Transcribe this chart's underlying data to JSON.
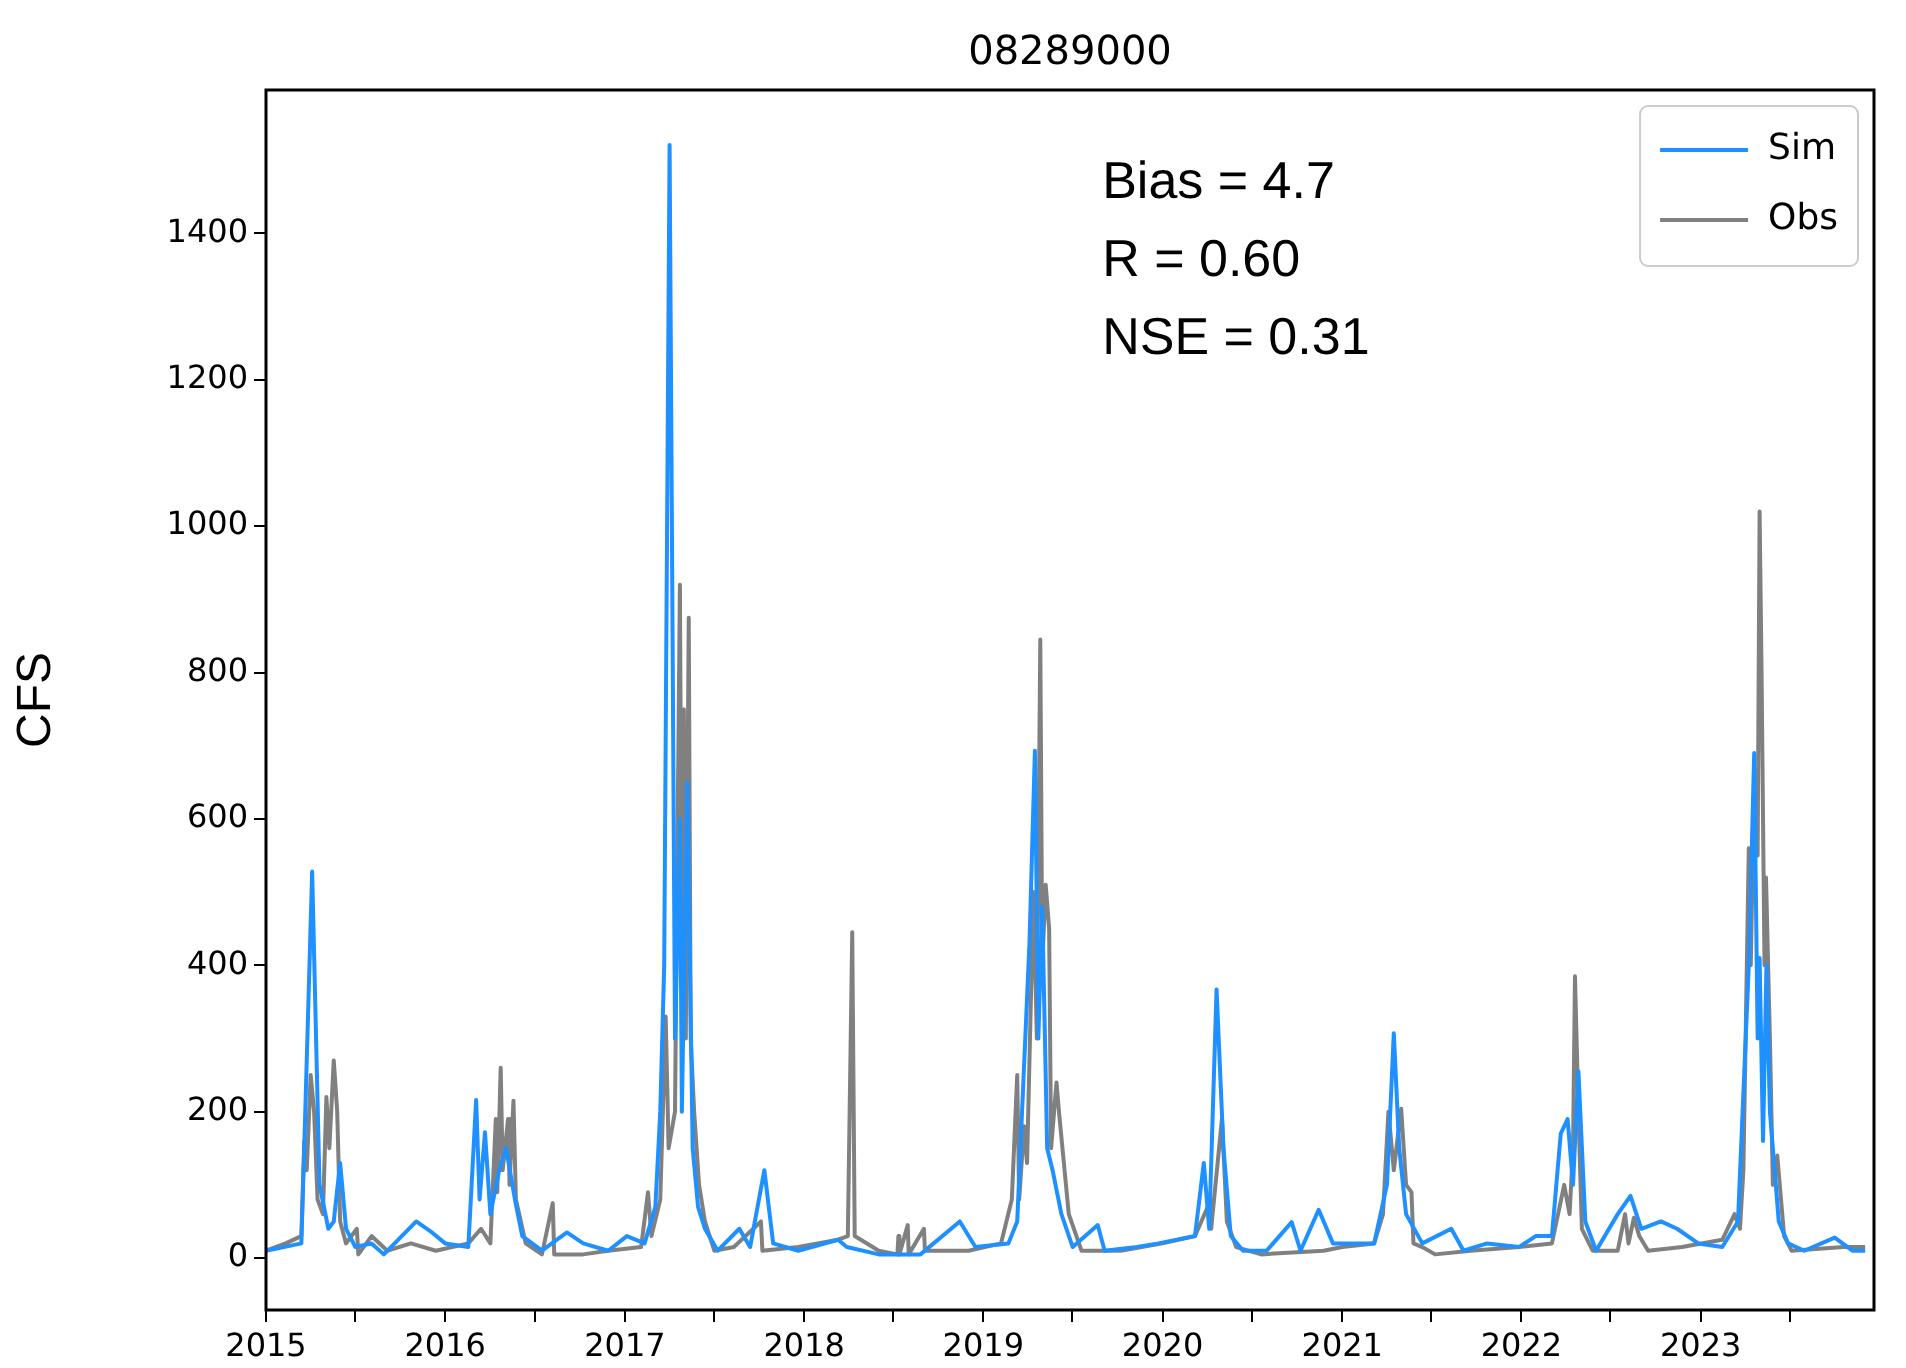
{
  "chart_data": {
    "type": "line",
    "title": "08289000",
    "ylabel": "CFS",
    "annotations": [
      "Bias = 4.7",
      "R = 0.60",
      "NSE = 0.31"
    ],
    "xlim": [
      "2015-01-01",
      "2023-12-20"
    ],
    "xticks": [
      {
        "value": "2015",
        "label": "2015"
      },
      {
        "value": "2015-07-01",
        "label": null
      },
      {
        "value": "2016",
        "label": "2016"
      },
      {
        "value": "2016-07-01",
        "label": null
      },
      {
        "value": "2017",
        "label": "2017"
      },
      {
        "value": "2017-07-01",
        "label": null
      },
      {
        "value": "2018",
        "label": "2018"
      },
      {
        "value": "2018-07-01",
        "label": null
      },
      {
        "value": "2019",
        "label": "2019"
      },
      {
        "value": "2019-07-01",
        "label": null
      },
      {
        "value": "2020",
        "label": "2020"
      },
      {
        "value": "2020-07-01",
        "label": null
      },
      {
        "value": "2021",
        "label": "2021"
      },
      {
        "value": "2021-07-01",
        "label": null
      },
      {
        "value": "2022",
        "label": "2022"
      },
      {
        "value": "2022-07-01",
        "label": null
      },
      {
        "value": "2023",
        "label": "2023"
      },
      {
        "value": "2023-07-01",
        "label": null
      }
    ],
    "ylim": [
      -71,
      1596
    ],
    "yticks": [
      0,
      200,
      400,
      600,
      800,
      1000,
      1200,
      1400
    ],
    "grid": false,
    "legend": "top right",
    "marker": "none",
    "line_style": "solid",
    "series": [
      {
        "name": "Sim",
        "color": "#1e90ff",
        "x": [
          "2015-01-01",
          "2015-03-14",
          "2015-03-22",
          "2015-04-05",
          "2015-04-20",
          "2015-05-08",
          "2015-05-19",
          "2015-06-01",
          "2015-06-13",
          "2015-07-02",
          "2015-08-04",
          "2015-08-29",
          "2015-11-03",
          "2015-12-05",
          "2016-01-01",
          "2016-02-17",
          "2016-03-04",
          "2016-03-11",
          "2016-03-22",
          "2016-04-02",
          "2016-04-20",
          "2016-05-04",
          "2016-05-22",
          "2016-06-06",
          "2016-07-16",
          "2016-09-05",
          "2016-10-08",
          "2016-11-28",
          "2017-01-05",
          "2017-02-10",
          "2017-03-04",
          "2017-03-14",
          "2017-03-22",
          "2017-04-02",
          "2017-04-13",
          "2017-04-23",
          "2017-04-27",
          "2017-05-08",
          "2017-05-19",
          "2017-05-30",
          "2017-06-13",
          "2017-07-09",
          "2017-08-22",
          "2017-09-13",
          "2017-10-12",
          "2017-10-30",
          "2017-12-20",
          "2018-03-11",
          "2018-03-29",
          "2018-06-02",
          "2018-08-26",
          "2018-11-14",
          "2018-12-16",
          "2019-02-21",
          "2019-03-11",
          "2019-04-05",
          "2019-04-16",
          "2019-04-23",
          "2019-05-01",
          "2019-05-11",
          "2019-05-22",
          "2019-06-09",
          "2019-07-02",
          "2019-08-22",
          "2019-09-05",
          "2019-11-10",
          "2019-12-24",
          "2020-03-07",
          "2020-03-25",
          "2020-04-05",
          "2020-04-20",
          "2020-05-04",
          "2020-05-19",
          "2020-06-13",
          "2020-07-31",
          "2020-09-20",
          "2020-10-08",
          "2020-11-14",
          "2020-12-13",
          "2021-03-07",
          "2021-04-02",
          "2021-04-16",
          "2021-04-27",
          "2021-05-11",
          "2021-06-13",
          "2021-08-11",
          "2021-09-05",
          "2021-10-23",
          "2021-12-27",
          "2022-01-30",
          "2022-03-04",
          "2022-03-22",
          "2022-04-05",
          "2022-04-16",
          "2022-04-27",
          "2022-05-11",
          "2022-06-02",
          "2022-07-16",
          "2022-08-11",
          "2022-09-02",
          "2022-10-12",
          "2022-11-14",
          "2022-12-27",
          "2023-02-14",
          "2023-03-18",
          "2023-04-09",
          "2023-04-20",
          "2023-04-27",
          "2023-05-01",
          "2023-05-08",
          "2023-05-15",
          "2023-05-22",
          "2023-06-09",
          "2023-06-28",
          "2023-07-31",
          "2023-10-01",
          "2023-11-06",
          "2023-12-02"
        ],
        "values": [
          10,
          20,
          200,
          528,
          100,
          40,
          50,
          130,
          40,
          15,
          20,
          5,
          50,
          35,
          20,
          15,
          216,
          80,
          172,
          60,
          120,
          150,
          80,
          30,
          10,
          35,
          20,
          10,
          30,
          20,
          70,
          200,
          400,
          1521,
          300,
          600,
          200,
          650,
          150,
          70,
          40,
          10,
          40,
          15,
          120,
          20,
          10,
          25,
          15,
          5,
          5,
          50,
          15,
          20,
          50,
          431,
          693,
          300,
          480,
          150,
          120,
          60,
          15,
          45,
          10,
          15,
          20,
          30,
          130,
          40,
          367,
          150,
          30,
          10,
          10,
          49,
          10,
          66,
          20,
          20,
          100,
          307,
          150,
          60,
          20,
          40,
          10,
          20,
          15,
          30,
          30,
          170,
          190,
          100,
          255,
          50,
          10,
          60,
          85,
          40,
          50,
          40,
          20,
          15,
          50,
          400,
          690,
          300,
          410,
          160,
          400,
          200,
          50,
          20,
          10,
          28,
          10,
          10
        ]
      },
      {
        "name": "Obs",
        "color": "#808080",
        "x": [
          "2015-01-01",
          "2015-02-10",
          "2015-03-14",
          "2015-03-20",
          "2015-03-25",
          "2015-04-02",
          "2015-04-09",
          "2015-04-16",
          "2015-04-27",
          "2015-05-04",
          "2015-05-10",
          "2015-05-19",
          "2015-05-26",
          "2015-06-01",
          "2015-06-13",
          "2015-07-05",
          "2015-07-08",
          "2015-08-04",
          "2015-09-05",
          "2015-10-23",
          "2015-12-13",
          "2016-02-17",
          "2016-03-14",
          "2016-04-02",
          "2016-04-13",
          "2016-04-16",
          "2016-04-23",
          "2016-04-27",
          "2016-05-08",
          "2016-05-11",
          "2016-05-19",
          "2016-05-24",
          "2016-06-13",
          "2016-07-16",
          "2016-08-07",
          "2016-08-10",
          "2016-10-08",
          "2016-11-28",
          "2017-02-03",
          "2017-02-17",
          "2017-02-24",
          "2017-03-14",
          "2017-03-25",
          "2017-03-31",
          "2017-04-13",
          "2017-04-23",
          "2017-04-27",
          "2017-05-01",
          "2017-05-05",
          "2017-05-11",
          "2017-05-15",
          "2017-05-22",
          "2017-06-01",
          "2017-06-13",
          "2017-07-02",
          "2017-08-11",
          "2017-10-05",
          "2017-10-08",
          "2017-12-20",
          "2018-03-11",
          "2018-03-31",
          "2018-04-09",
          "2018-04-14",
          "2018-06-02",
          "2018-07-10",
          "2018-07-12",
          "2018-07-14",
          "2018-07-31",
          "2018-08-02",
          "2018-09-02",
          "2018-09-04",
          "2018-12-02",
          "2019-02-06",
          "2019-02-28",
          "2019-03-11",
          "2019-03-15",
          "2019-03-25",
          "2019-03-31",
          "2019-04-13",
          "2019-04-20",
          "2019-04-27",
          "2019-05-01",
          "2019-05-08",
          "2019-05-15",
          "2019-05-19",
          "2019-05-30",
          "2019-06-04",
          "2019-06-24",
          "2019-07-20",
          "2019-10-08",
          "2020-01-01",
          "2020-03-07",
          "2020-04-02",
          "2020-04-09",
          "2020-05-01",
          "2020-05-11",
          "2020-05-30",
          "2020-07-20",
          "2020-11-24",
          "2021-01-01",
          "2021-03-07",
          "2021-03-25",
          "2021-04-05",
          "2021-04-16",
          "2021-05-01",
          "2021-05-11",
          "2021-05-22",
          "2021-05-26",
          "2021-06-13",
          "2021-07-09",
          "2021-09-20",
          "2021-12-27",
          "2022-03-04",
          "2022-03-29",
          "2022-04-09",
          "2022-04-16",
          "2022-04-20",
          "2022-04-27",
          "2022-05-04",
          "2022-05-26",
          "2022-07-16",
          "2022-07-31",
          "2022-08-07",
          "2022-08-18",
          "2022-08-29",
          "2022-09-16",
          "2022-11-24",
          "2023-02-14",
          "2023-03-11",
          "2023-03-22",
          "2023-03-29",
          "2023-04-09",
          "2023-04-13",
          "2023-04-20",
          "2023-04-27",
          "2023-05-01",
          "2023-05-05",
          "2023-05-11",
          "2023-05-14",
          "2023-05-22",
          "2023-05-28",
          "2023-06-06",
          "2023-06-20",
          "2023-07-05",
          "2023-10-19",
          "2023-12-02"
        ],
        "values": [
          10,
          20,
          30,
          160,
          120,
          250,
          200,
          80,
          60,
          220,
          150,
          270,
          200,
          50,
          20,
          40,
          5,
          30,
          10,
          20,
          10,
          20,
          40,
          20,
          190,
          90,
          260,
          120,
          190,
          100,
          215,
          80,
          20,
          5,
          75,
          5,
          5,
          10,
          15,
          90,
          30,
          80,
          330,
          150,
          200,
          920,
          400,
          750,
          300,
          875,
          300,
          200,
          100,
          50,
          10,
          15,
          50,
          10,
          15,
          25,
          30,
          445,
          30,
          10,
          5,
          30,
          5,
          45,
          5,
          40,
          10,
          10,
          20,
          80,
          250,
          80,
          180,
          130,
          500,
          300,
          845,
          400,
          510,
          450,
          150,
          240,
          200,
          60,
          10,
          10,
          20,
          30,
          70,
          40,
          190,
          50,
          15,
          5,
          10,
          15,
          20,
          60,
          200,
          120,
          204,
          100,
          90,
          20,
          15,
          5,
          10,
          15,
          20,
          100,
          60,
          150,
          385,
          200,
          40,
          10,
          10,
          60,
          20,
          55,
          30,
          10,
          15,
          25,
          60,
          40,
          120,
          560,
          400,
          650,
          550,
          1020,
          800,
          400,
          520,
          300,
          100,
          140,
          30,
          10,
          15,
          15
        ]
      }
    ]
  }
}
